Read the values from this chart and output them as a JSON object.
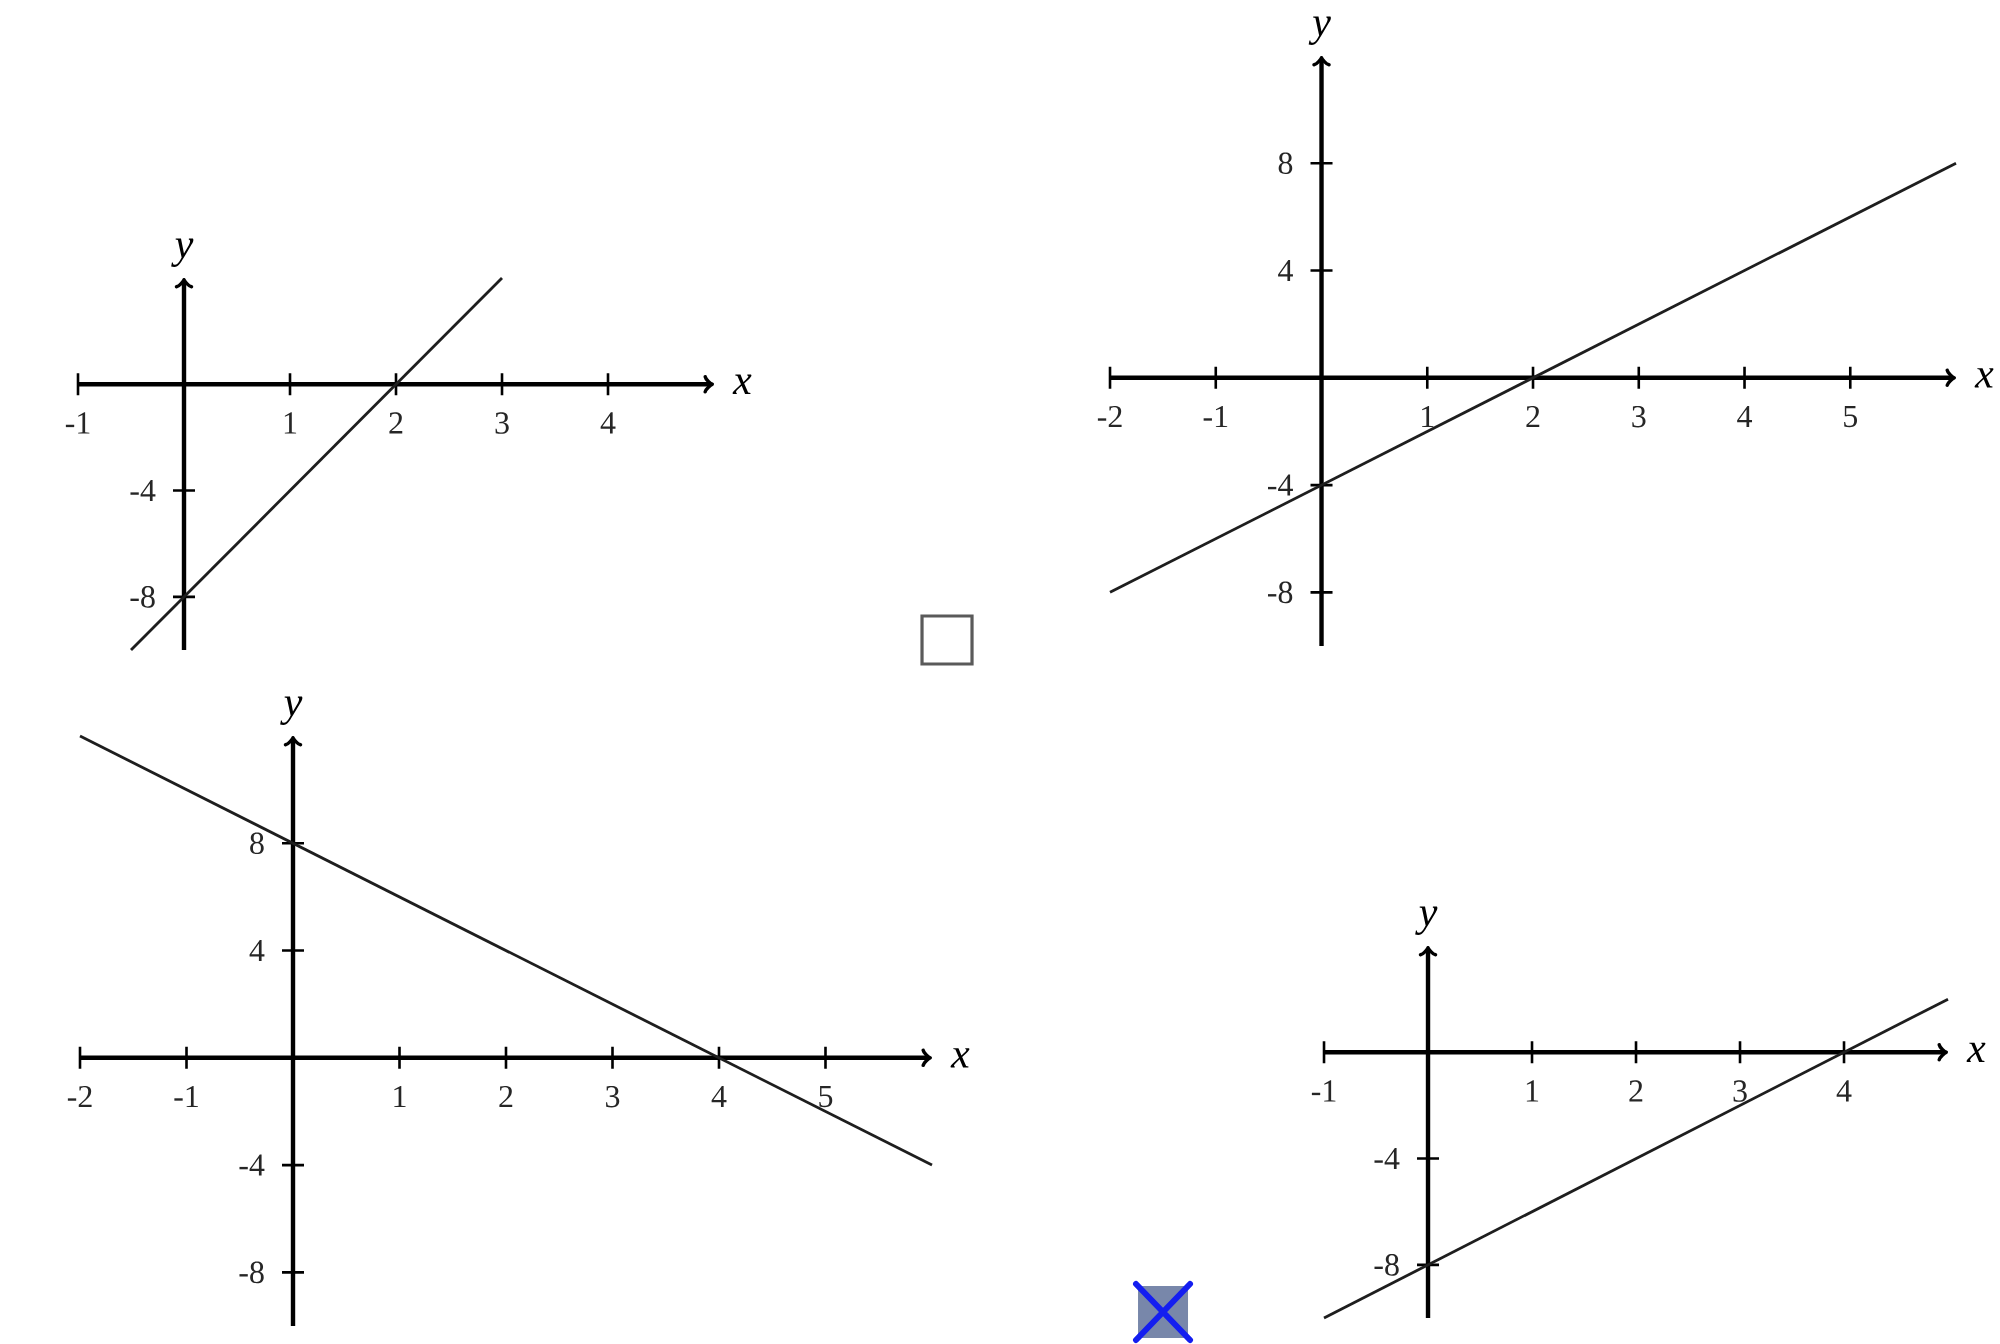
{
  "chart_data": [
    {
      "type": "line",
      "xlabel": "x",
      "ylabel": "y",
      "x": [
        -0.5,
        3
      ],
      "series": [
        {
          "color": "#1e1e1e",
          "values": [
            -10,
            4
          ]
        }
      ],
      "xlim": [
        -1,
        5
      ],
      "ylim": [
        -10,
        4
      ],
      "xticks": [
        -1,
        1,
        2,
        3,
        4
      ],
      "yticks": [
        -8,
        -4
      ]
    },
    {
      "type": "line",
      "xlabel": "x",
      "ylabel": "y",
      "x": [
        -2,
        6
      ],
      "series": [
        {
          "color": "#1e1e1e",
          "values": [
            -8,
            8
          ]
        }
      ],
      "xlim": [
        -2,
        6
      ],
      "ylim": [
        -10,
        12
      ],
      "xticks": [
        -2,
        -1,
        1,
        2,
        3,
        4,
        5
      ],
      "yticks": [
        -8,
        -4,
        4,
        8
      ]
    },
    {
      "type": "line",
      "xlabel": "x",
      "ylabel": "y",
      "x": [
        -2,
        6
      ],
      "series": [
        {
          "color": "#1e1e1e",
          "values": [
            12,
            -4
          ]
        }
      ],
      "xlim": [
        -2,
        6
      ],
      "ylim": [
        -10,
        12
      ],
      "xticks": [
        -2,
        -1,
        1,
        2,
        3,
        4,
        5
      ],
      "yticks": [
        -8,
        -4,
        4,
        8
      ]
    },
    {
      "type": "line",
      "xlabel": "x",
      "ylabel": "y",
      "x": [
        -1,
        5
      ],
      "series": [
        {
          "color": "#1e1e1e",
          "values": [
            -10,
            2
          ]
        }
      ],
      "xlim": [
        -1,
        5
      ],
      "ylim": [
        -10,
        4
      ],
      "xticks": [
        -1,
        1,
        2,
        3,
        4
      ],
      "yticks": [
        -8,
        -4
      ]
    }
  ]
}
